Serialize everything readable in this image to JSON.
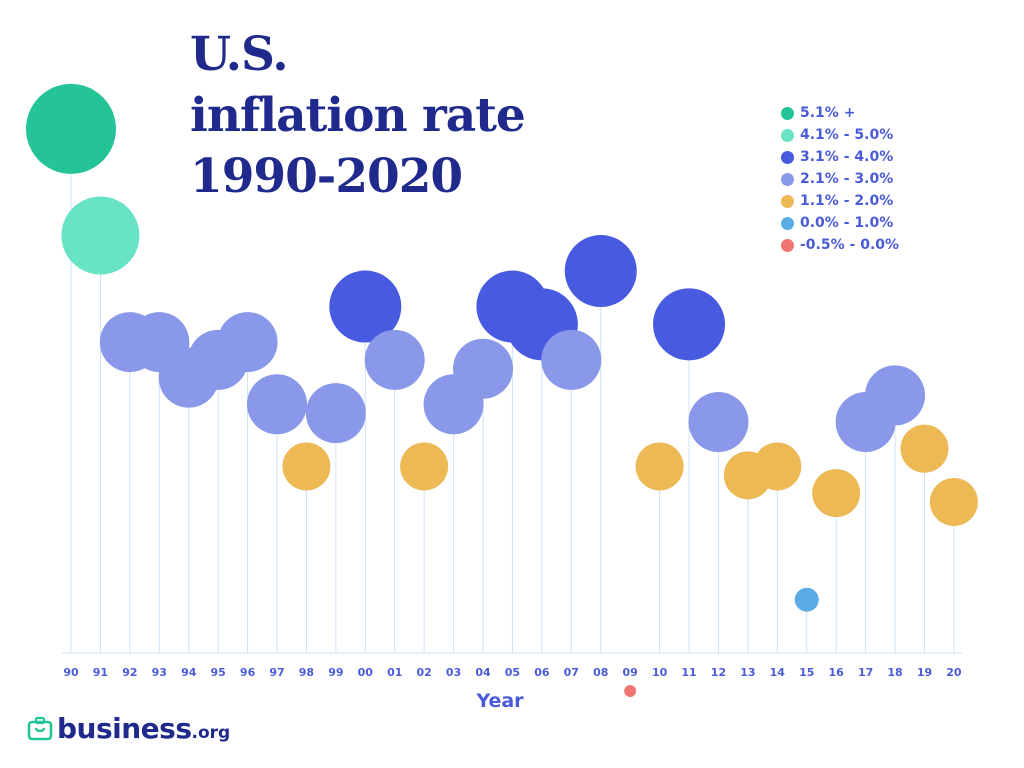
{
  "title_lines": [
    "U.S.",
    "inflation rate",
    "1990-2020"
  ],
  "chart_data": {
    "type": "scatter",
    "title": "U.S. inflation rate 1990-2020",
    "xlabel": "Year",
    "ylabel": "",
    "x": [
      "90",
      "91",
      "92",
      "93",
      "94",
      "95",
      "96",
      "97",
      "98",
      "99",
      "00",
      "01",
      "02",
      "03",
      "04",
      "05",
      "06",
      "07",
      "08",
      "09",
      "10",
      "11",
      "12",
      "13",
      "14",
      "15",
      "16",
      "17",
      "18",
      "19",
      "20"
    ],
    "y": [
      5.4,
      4.2,
      3.0,
      3.0,
      2.6,
      2.8,
      3.0,
      2.3,
      1.6,
      2.2,
      3.4,
      2.8,
      1.6,
      2.3,
      2.7,
      3.4,
      3.2,
      2.8,
      3.8,
      -0.4,
      1.6,
      3.2,
      2.1,
      1.5,
      1.6,
      0.1,
      1.3,
      2.1,
      2.4,
      1.8,
      1.2
    ],
    "ylim": [
      -0.5,
      5.5
    ],
    "grid": false,
    "legend_position": "top-right",
    "legend": [
      {
        "label": "5.1% +",
        "color": "#25c497",
        "min": 5.05,
        "max": 100
      },
      {
        "label": "4.1% - 5.0%",
        "color": "#68e3c4",
        "min": 4.05,
        "max": 5.05
      },
      {
        "label": "3.1% - 4.0%",
        "color": "#485be0",
        "min": 3.05,
        "max": 4.05
      },
      {
        "label": "2.1% - 3.0%",
        "color": "#8a98ea",
        "min": 2.05,
        "max": 3.05
      },
      {
        "label": "1.1% - 2.0%",
        "color": "#ecb955",
        "min": 1.05,
        "max": 2.05
      },
      {
        "label": "0.0% - 1.0%",
        "color": "#5aace6",
        "min": -0.005,
        "max": 1.05
      },
      {
        "label": "-0.5% - 0.0%",
        "color": "#f07470",
        "min": -100,
        "max": -0.005
      }
    ]
  },
  "logo": {
    "word": "business",
    "tld": ".org"
  }
}
